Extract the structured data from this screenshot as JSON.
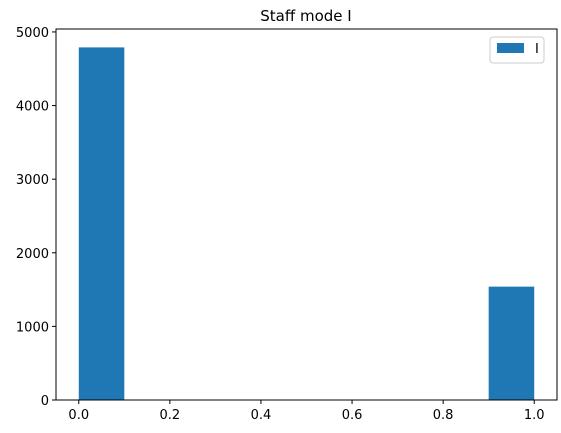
{
  "chart_data": {
    "type": "bar",
    "title": "Staff mode I",
    "xlabel": "",
    "ylabel": "",
    "xlim": [
      -0.05,
      1.05
    ],
    "ylim": [
      0,
      5040
    ],
    "x_ticks": [
      0.0,
      0.2,
      0.4,
      0.6,
      0.8,
      1.0
    ],
    "x_tick_labels": [
      "0.0",
      "0.2",
      "0.4",
      "0.6",
      "0.8",
      "1.0"
    ],
    "y_ticks": [
      0,
      1000,
      2000,
      3000,
      4000,
      5000
    ],
    "y_tick_labels": [
      "0",
      "1000",
      "2000",
      "3000",
      "4000",
      "5000"
    ],
    "bins": [
      {
        "start": 0.0,
        "end": 0.1,
        "value": 4790
      },
      {
        "start": 0.9,
        "end": 1.0,
        "value": 1540
      }
    ],
    "series": [
      {
        "name": "I",
        "color": "#1f77b4"
      }
    ],
    "legend_position": "top-right",
    "grid": false
  }
}
